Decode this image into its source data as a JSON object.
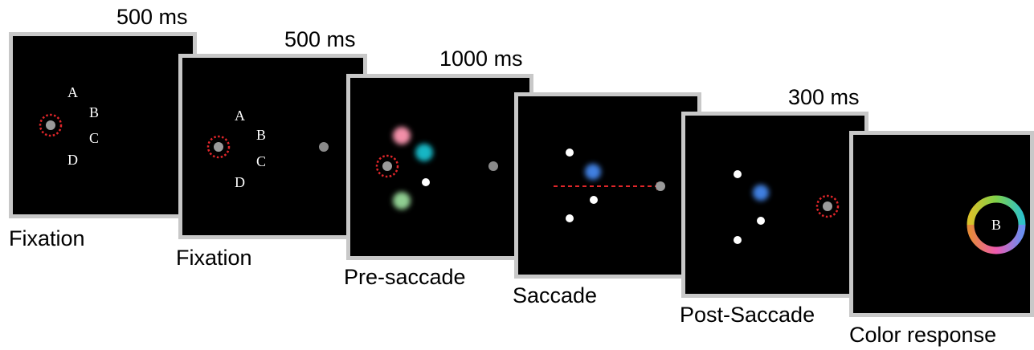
{
  "panels": [
    {
      "duration": "500 ms",
      "caption": "Fixation",
      "locations": [
        "A",
        "B",
        "C",
        "D"
      ]
    },
    {
      "duration": "500 ms",
      "caption": "Fixation",
      "locations": [
        "A",
        "B",
        "C",
        "D"
      ]
    },
    {
      "duration": "1000 ms",
      "caption": "Pre-saccade"
    },
    {
      "duration": "",
      "caption": "Saccade"
    },
    {
      "duration": "300 ms",
      "caption": "Post-Saccade"
    },
    {
      "duration": "",
      "caption": "Color response",
      "probe_label": "B"
    }
  ],
  "colors": {
    "frame_border": "#c8c8c8",
    "fixation_ring": "#e0262a",
    "stimulus_pink": "#f28fa8",
    "stimulus_cyan": "#16b6c4",
    "stimulus_green": "#8fce91",
    "stimulus_blue": "#3f7fe0"
  }
}
